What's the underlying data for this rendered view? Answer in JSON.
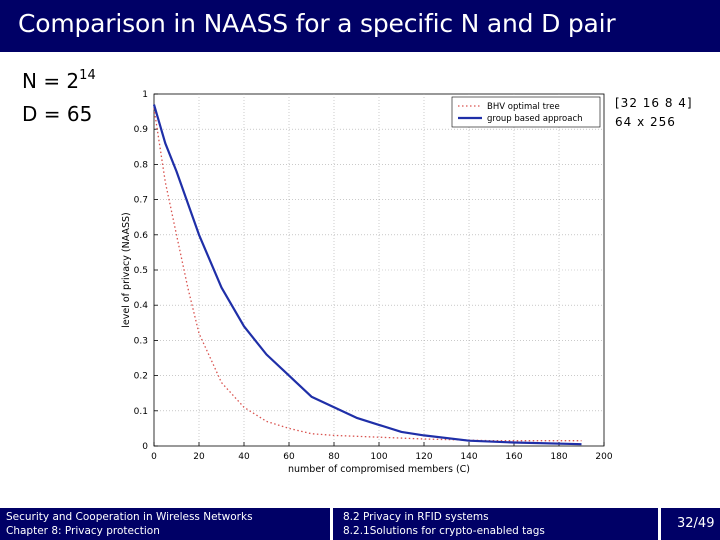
{
  "slide": {
    "title": "Comparison in NAASS for a specific N and D pair",
    "n_label": "N = 2",
    "n_exp": "14",
    "d_label": "D = 65",
    "config": [
      "[32 16 8 4]",
      "64 x 256"
    ]
  },
  "colors": {
    "bar": "#000066",
    "bhv": "#d9534f",
    "group": "#1f2fa8"
  },
  "chart_data": {
    "type": "line",
    "xlabel": "number of compromised members (C)",
    "ylabel": "level of privacy (NAASS)",
    "xlim": [
      0,
      200
    ],
    "ylim": [
      0,
      1
    ],
    "xticks": [
      "0",
      "20",
      "40",
      "60",
      "80",
      "100",
      "120",
      "140",
      "160",
      "180",
      "200"
    ],
    "yticks": [
      "0",
      "0.1",
      "0.2",
      "0.3",
      "0.4",
      "0.5",
      "0.6",
      "0.7",
      "0.8",
      "0.9",
      "1"
    ],
    "grid": true,
    "legend_position": "top-right",
    "series": [
      {
        "name": "BHV optimal tree",
        "style": "dotted",
        "x": [
          0,
          5,
          10,
          15,
          20,
          25,
          30,
          40,
          50,
          60,
          70,
          80,
          100,
          120,
          150,
          190
        ],
        "y": [
          0.96,
          0.75,
          0.6,
          0.45,
          0.32,
          0.25,
          0.18,
          0.11,
          0.07,
          0.05,
          0.035,
          0.03,
          0.025,
          0.02,
          0.015,
          0.015
        ]
      },
      {
        "name": "group based approach",
        "style": "solid",
        "x": [
          0,
          5,
          10,
          20,
          30,
          40,
          50,
          60,
          70,
          80,
          90,
          100,
          110,
          120,
          140,
          160,
          190
        ],
        "y": [
          0.97,
          0.86,
          0.78,
          0.6,
          0.45,
          0.34,
          0.26,
          0.2,
          0.14,
          0.11,
          0.08,
          0.06,
          0.04,
          0.03,
          0.015,
          0.01,
          0.005
        ]
      }
    ]
  },
  "footer": {
    "left_line1": "Security and Cooperation in Wireless Networks",
    "left_line2": "Chapter 8: Privacy protection",
    "mid_line1": "8.2 Privacy in RFID systems",
    "mid_line2": "8.2.1Solutions for crypto-enabled tags",
    "page": "32/49"
  }
}
